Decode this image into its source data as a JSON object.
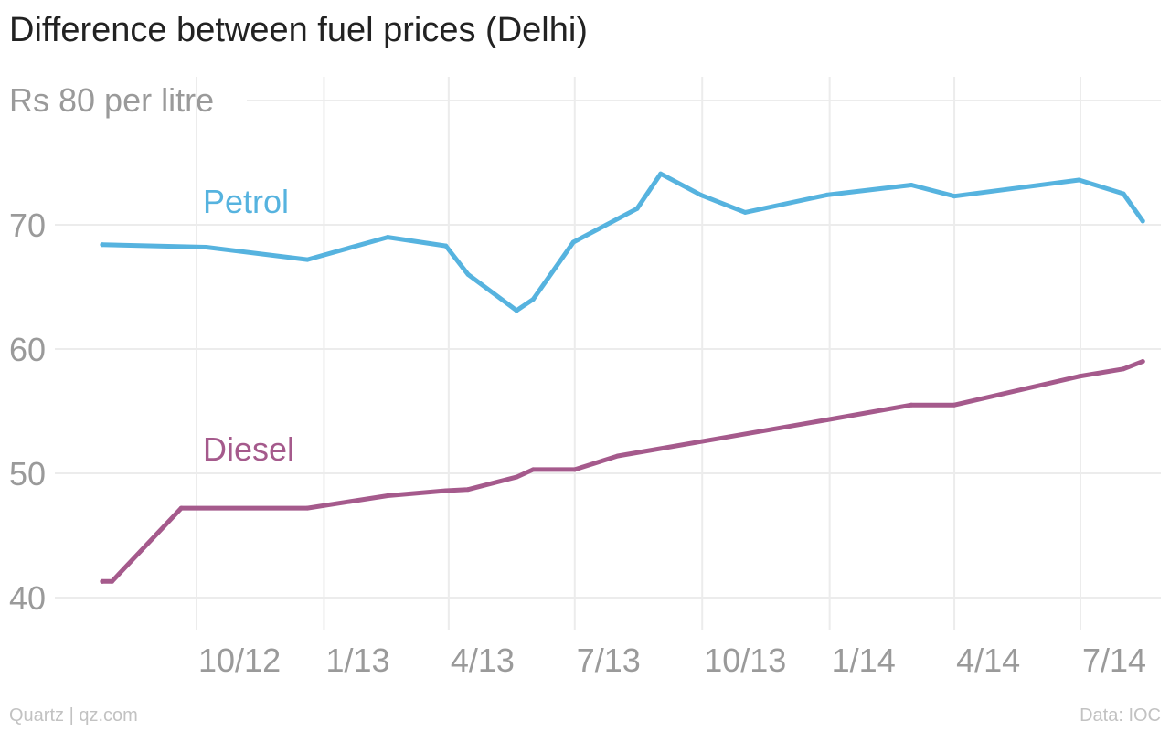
{
  "chart_data": {
    "type": "line",
    "title": "Difference between fuel prices (Delhi)",
    "y_unit_label": "Rs 80 per litre",
    "ylim": [
      40,
      80
    ],
    "y_ticks": [
      40,
      50,
      60,
      70
    ],
    "x_tick_labels": [
      "10/12",
      "1/13",
      "4/13",
      "7/13",
      "10/13",
      "1/14",
      "4/14",
      "7/14"
    ],
    "x_tick_months": [
      "2012-10",
      "2013-01",
      "2013-04",
      "2013-07",
      "2013-10",
      "2014-01",
      "2014-04",
      "2014-07"
    ],
    "grid": true,
    "series": [
      {
        "name": "Petrol",
        "color": "#56b3df",
        "points": [
          [
            "2012-07-25",
            68.4
          ],
          [
            "2012-10-08",
            68.2
          ],
          [
            "2012-12-20",
            67.2
          ],
          [
            "2013-02-16",
            69.0
          ],
          [
            "2013-03-30",
            68.3
          ],
          [
            "2013-04-15",
            66.0
          ],
          [
            "2013-05-20",
            63.1
          ],
          [
            "2013-06-01",
            64.0
          ],
          [
            "2013-06-30",
            68.6
          ],
          [
            "2013-08-15",
            71.3
          ],
          [
            "2013-09-01",
            74.1
          ],
          [
            "2013-09-30",
            72.4
          ],
          [
            "2013-11-01",
            71.0
          ],
          [
            "2013-12-30",
            72.4
          ],
          [
            "2014-03-01",
            73.2
          ],
          [
            "2014-04-01",
            72.3
          ],
          [
            "2014-06-30",
            73.6
          ],
          [
            "2014-08-01",
            72.5
          ],
          [
            "2014-08-15",
            70.3
          ]
        ]
      },
      {
        "name": "Diesel",
        "color": "#a55a8c",
        "points": [
          [
            "2012-07-25",
            41.3
          ],
          [
            "2012-08-01",
            41.3
          ],
          [
            "2012-09-20",
            47.2
          ],
          [
            "2012-12-20",
            47.2
          ],
          [
            "2013-02-16",
            48.2
          ],
          [
            "2013-03-30",
            48.6
          ],
          [
            "2013-04-15",
            48.7
          ],
          [
            "2013-05-20",
            49.7
          ],
          [
            "2013-06-01",
            50.3
          ],
          [
            "2013-07-01",
            50.3
          ],
          [
            "2013-08-01",
            51.4
          ],
          [
            "2013-12-30",
            54.3
          ],
          [
            "2014-03-01",
            55.5
          ],
          [
            "2014-04-01",
            55.5
          ],
          [
            "2014-06-30",
            57.8
          ],
          [
            "2014-08-01",
            58.4
          ],
          [
            "2014-08-15",
            59.0
          ]
        ]
      }
    ]
  },
  "footer": {
    "source_left": "Quartz | qz.com",
    "source_right": "Data: IOC"
  }
}
